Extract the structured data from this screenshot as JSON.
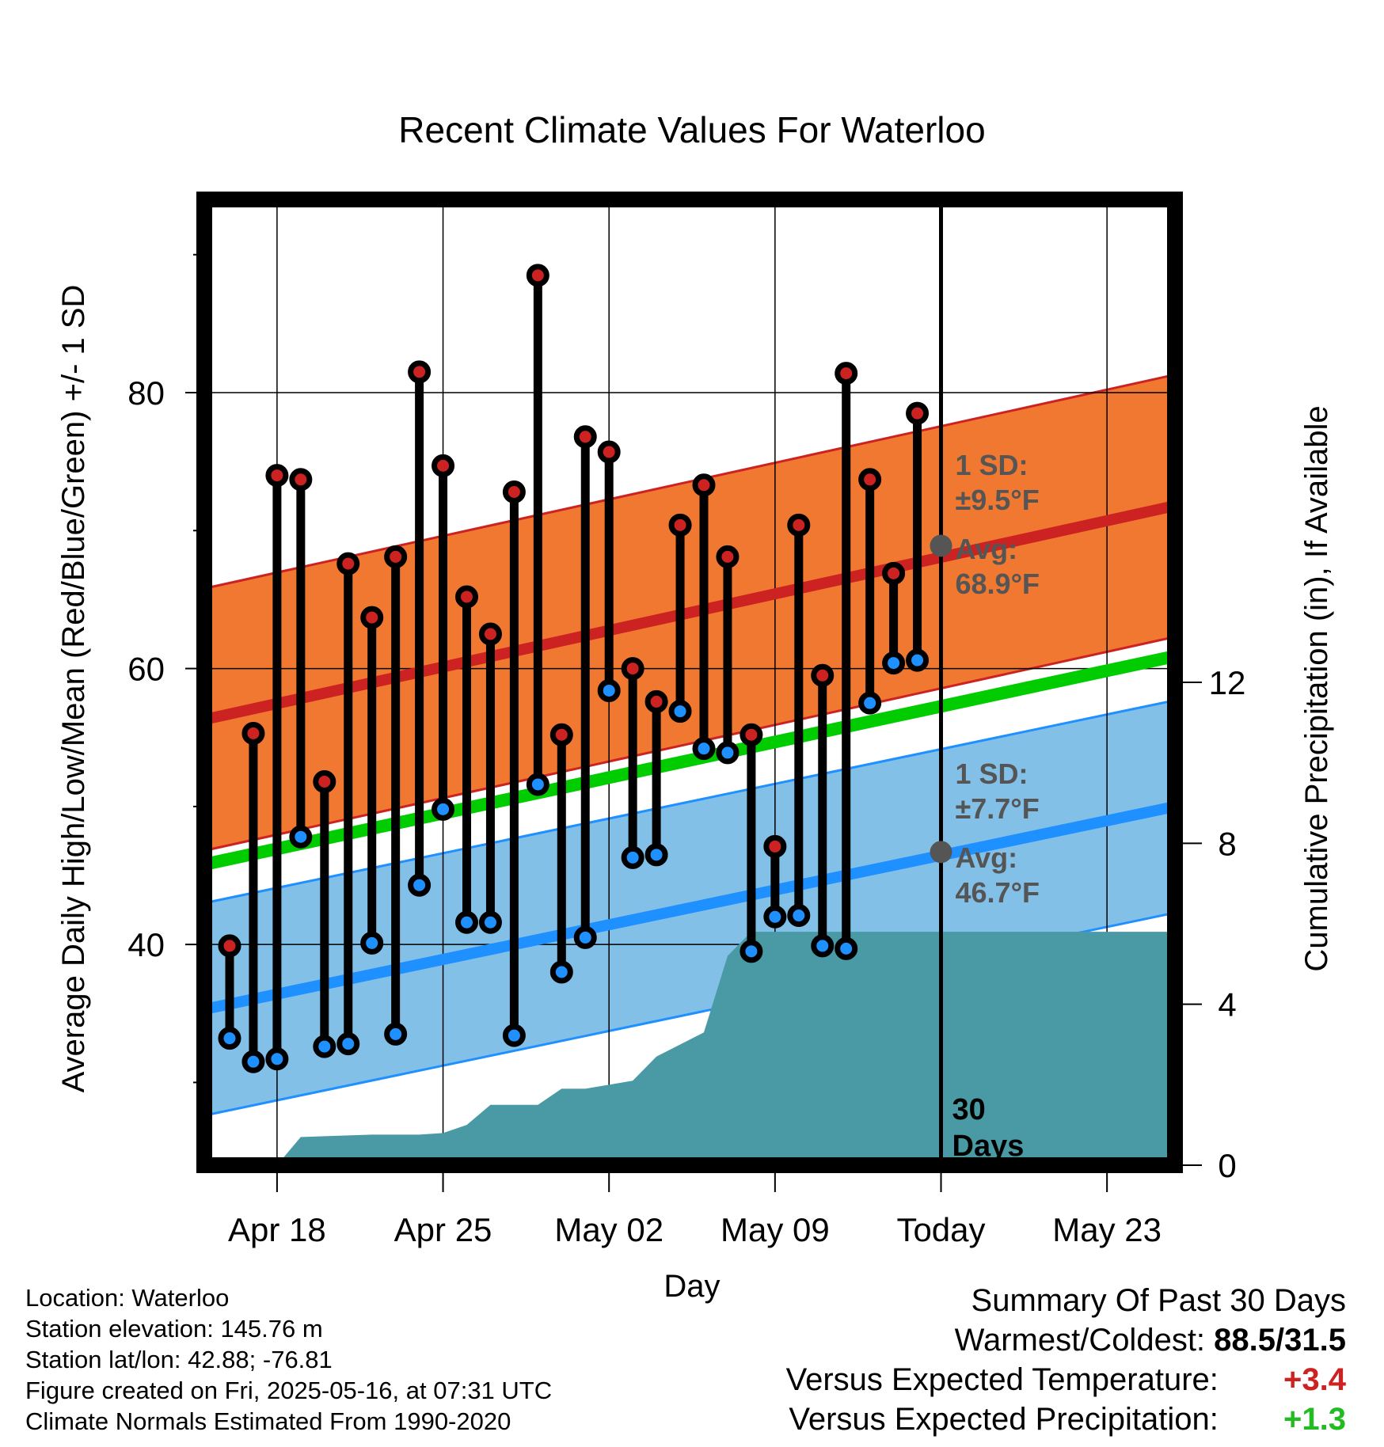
{
  "chart_data": {
    "type": "line",
    "title": "Recent Climate Values For Waterloo",
    "xlabel": "Day",
    "ylabel": "Average Daily High/Low/Mean (Red/Blue/Green) +/- 1 SD",
    "y2label": "Cumulative Precipitation (in), If Available",
    "x_tick_labels": [
      "Apr 18",
      "Apr 25",
      "May 02",
      "May 09",
      "Today",
      "May 23"
    ],
    "y_ticks": [
      40,
      60,
      80
    ],
    "y2_ticks": [
      0,
      4,
      8,
      12
    ],
    "ylim": [
      24,
      94
    ],
    "y2lim": [
      0,
      24
    ],
    "daily_highs": [
      39.9,
      55.3,
      74.0,
      73.7,
      51.8,
      67.6,
      63.7,
      68.1,
      81.5,
      74.7,
      65.2,
      62.5,
      72.8,
      88.5,
      55.2,
      76.8,
      75.7,
      60.0,
      57.6,
      70.4,
      73.3,
      68.1,
      55.2,
      47.1,
      70.4,
      59.5,
      81.4,
      73.7,
      66.9,
      78.5
    ],
    "daily_lows": [
      33.2,
      31.5,
      31.7,
      47.8,
      32.6,
      32.8,
      40.1,
      33.5,
      44.3,
      49.8,
      41.6,
      41.6,
      33.4,
      51.6,
      38.0,
      40.5,
      58.4,
      46.3,
      46.5,
      56.9,
      54.2,
      53.9,
      39.5,
      42.0,
      42.1,
      39.9,
      39.7,
      57.5,
      60.4,
      60.6
    ],
    "precip_cumulative": [
      0,
      0,
      0,
      0.7,
      0.72,
      0.74,
      0.76,
      0.76,
      0.76,
      0.8,
      1.0,
      1.5,
      1.5,
      1.5,
      1.9,
      1.9,
      2.0,
      2.1,
      2.7,
      3.0,
      3.3,
      5.2,
      5.8,
      5.8,
      5.8,
      5.8,
      5.8,
      5.8,
      5.8,
      5.8
    ],
    "normal_high": {
      "start": 56.3,
      "end": 71.8,
      "sd": 9.5
    },
    "normal_low": {
      "start": 35.3,
      "end": 50.0,
      "sd": 7.7
    },
    "normal_mean": {
      "start": 45.8,
      "end": 60.9
    },
    "high_sd_label": "1 SD:",
    "high_sd_value": "±9.5°F",
    "high_avg_label": "Avg:",
    "high_avg_value": "68.9°F",
    "low_sd_label": "1 SD:",
    "low_sd_value": "±7.7°F",
    "low_avg_label": "Avg:",
    "low_avg_value": "46.7°F",
    "today_avg_high": 68.9,
    "today_avg_low": 46.7,
    "today_label_1": "30",
    "today_label_2": "Days",
    "colors": {
      "high": "#cc2222",
      "low": "#1e90ff",
      "mean": "#00cc00",
      "high_band": "#f07830",
      "low_band": "#82c0e8",
      "precip": "#4a9aa5"
    }
  },
  "footer": {
    "location": "Location: Waterloo",
    "elevation": "Station elevation: 145.76 m",
    "latlon": "Station lat/lon: 42.88; -76.81",
    "created": "Figure created on Fri, 2025-05-16, at 07:31 UTC",
    "normals": "Climate Normals Estimated From 1990-2020"
  },
  "summary": {
    "heading": "Summary Of Past 30 Days",
    "warm_cold_label": "Warmest/Coldest:",
    "warm_cold_value": "88.5/31.5",
    "temp_label": "Versus Expected Temperature:",
    "temp_value": "+3.4",
    "temp_color": "#cc2222",
    "precip_label": "Versus Expected Precipitation:",
    "precip_value": "+1.3",
    "precip_color": "#22bb22"
  }
}
